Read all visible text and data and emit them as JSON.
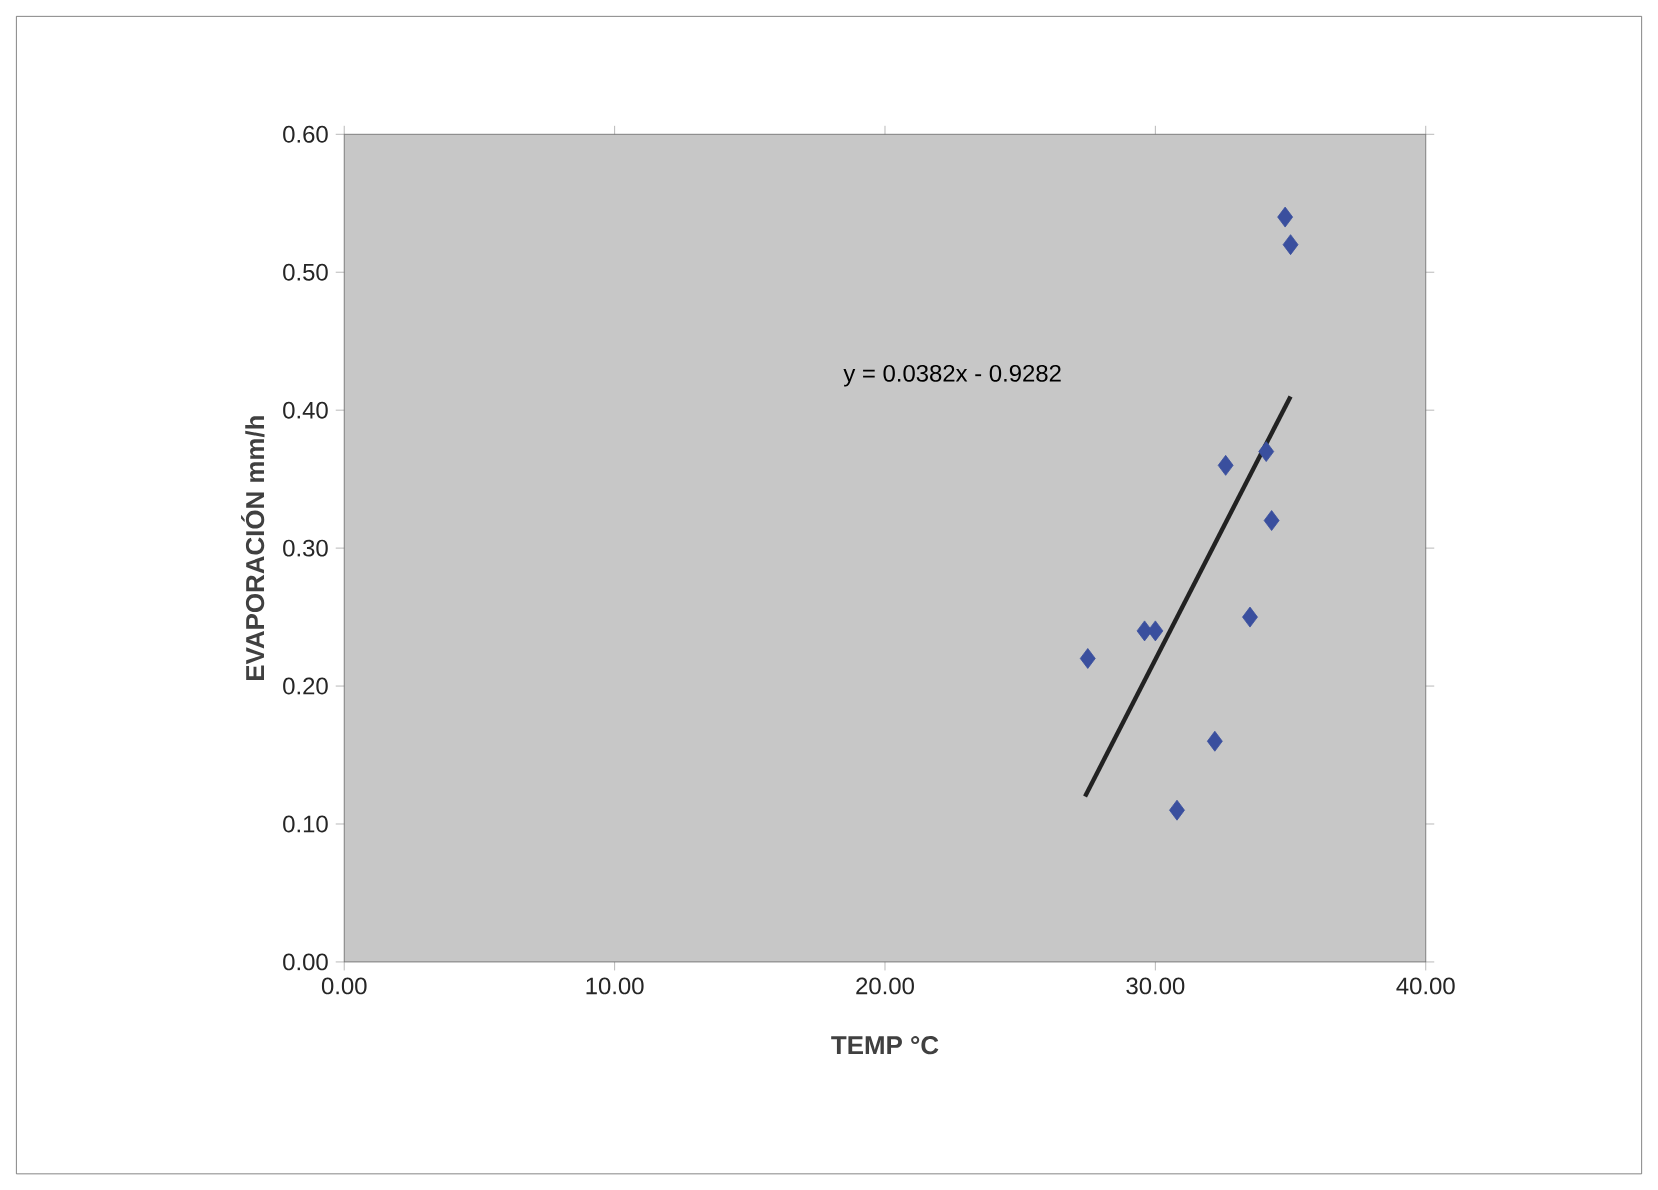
{
  "chart_data": {
    "type": "scatter",
    "xlabel": "TEMP  °C",
    "ylabel": "EVAPORACIÓN mm/h",
    "annotations": [
      "y = 0.0382x - 0.9282"
    ],
    "series": [
      {
        "color": "#3a4f9e",
        "marker": "diamond",
        "x": [
          27.5,
          29.6,
          30.0,
          30.8,
          32.2,
          32.6,
          33.5,
          34.1,
          34.3,
          34.8,
          35.0
        ],
        "values": [
          0.22,
          0.24,
          0.24,
          0.11,
          0.16,
          0.36,
          0.25,
          0.37,
          0.32,
          0.54,
          0.52
        ]
      },
      {
        "type": "line",
        "color": "#222222",
        "x": [
          27.4,
          35.0
        ],
        "values": [
          0.12,
          0.41
        ]
      }
    ],
    "xlim": [
      0,
      40
    ],
    "ylim": [
      0,
      0.6
    ],
    "xticks": [
      {
        "value": 0,
        "label": "0.00"
      },
      {
        "value": 10,
        "label": "10.00"
      },
      {
        "value": 20,
        "label": "20.00"
      },
      {
        "value": 30,
        "label": "30.00"
      },
      {
        "value": 40,
        "label": "40.00"
      }
    ],
    "yticks": [
      {
        "value": 0,
        "label": "0.00"
      },
      {
        "value": 0.1,
        "label": "0.10"
      },
      {
        "value": 0.2,
        "label": "0.20"
      },
      {
        "value": 0.3,
        "label": "0.30"
      },
      {
        "value": 0.4,
        "label": "0.40"
      },
      {
        "value": 0.5,
        "label": "0.50"
      },
      {
        "value": 0.6,
        "label": "0.60"
      }
    ],
    "grid": false
  }
}
